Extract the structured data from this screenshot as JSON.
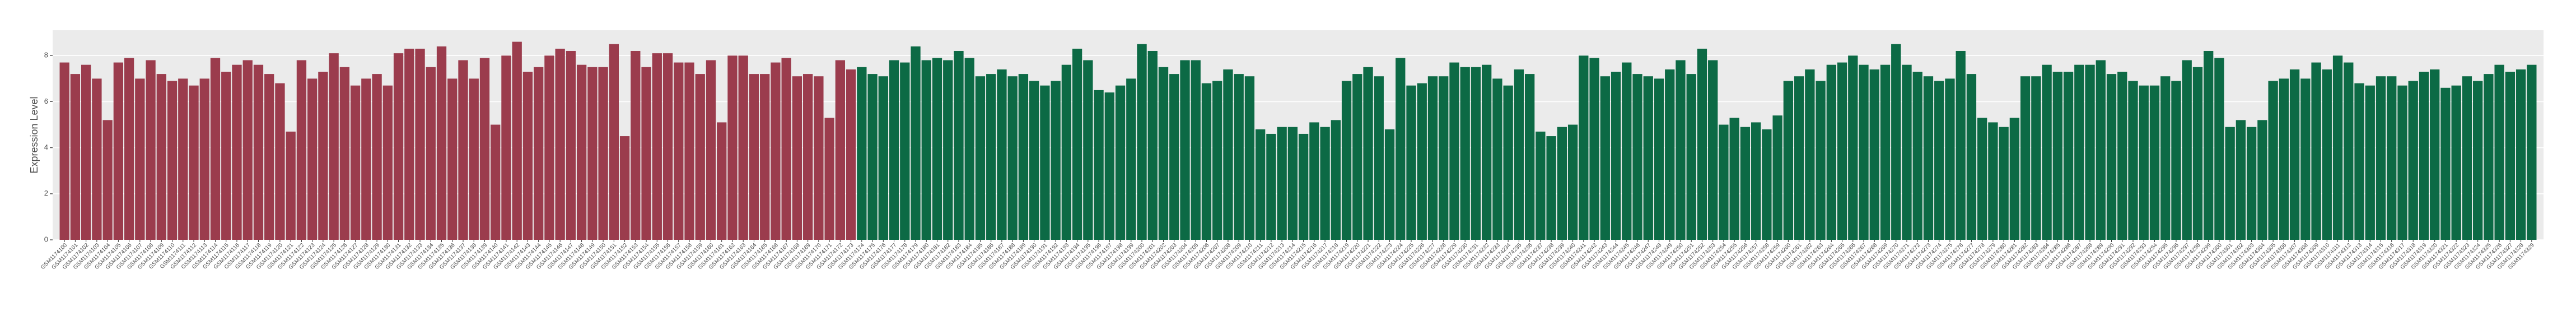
{
  "chart_data": {
    "type": "bar",
    "y_label": "Expression Level",
    "categories": [
      "GSM1174100",
      "GSM1174101",
      "GSM1174102",
      "GSM1174103",
      "GSM1174104",
      "GSM1174105",
      "GSM1174106",
      "GSM1174107",
      "GSM1174108",
      "GSM1174109",
      "GSM1174110",
      "GSM1174111",
      "GSM1174112",
      "GSM1174113",
      "GSM1174114",
      "GSM1174115",
      "GSM1174116",
      "GSM1174117",
      "GSM1174118",
      "GSM1174119",
      "GSM1174120",
      "GSM1174121",
      "GSM1174122",
      "GSM1174123",
      "GSM1174124",
      "GSM1174125",
      "GSM1174126",
      "GSM1174127",
      "GSM1174128",
      "GSM1174129",
      "GSM1174130",
      "GSM1174131",
      "GSM1174132",
      "GSM1174133",
      "GSM1174134",
      "GSM1174135",
      "GSM1174136",
      "GSM1174137",
      "GSM1174138",
      "GSM1174139",
      "GSM1174140",
      "GSM1174141",
      "GSM1174142",
      "GSM1174143",
      "GSM1174144",
      "GSM1174145",
      "GSM1174146",
      "GSM1174147",
      "GSM1174148",
      "GSM1174149",
      "GSM1174150",
      "GSM1174151",
      "GSM1174152",
      "GSM1174153",
      "GSM1174154",
      "GSM1174155",
      "GSM1174156",
      "GSM1174157",
      "GSM1174158",
      "GSM1174159",
      "GSM1174160",
      "GSM1174161",
      "GSM1174162",
      "GSM1174163",
      "GSM1174164",
      "GSM1174165",
      "GSM1174166",
      "GSM1174167",
      "GSM1174168",
      "GSM1174169",
      "GSM1174170",
      "GSM1174171",
      "GSM1174172",
      "GSM1174173",
      "GSM1174174",
      "GSM1174175",
      "GSM1174176",
      "GSM1174177",
      "GSM1174178",
      "GSM1174179",
      "GSM1174180",
      "GSM1174181",
      "GSM1174182",
      "GSM1174183",
      "GSM1174184",
      "GSM1174185",
      "GSM1174186",
      "GSM1174187",
      "GSM1174188",
      "GSM1174189",
      "GSM1174190",
      "GSM1174191",
      "GSM1174192",
      "GSM1174193",
      "GSM1174194",
      "GSM1174195",
      "GSM1174196",
      "GSM1174197",
      "GSM1174198",
      "GSM1174199",
      "GSM1174200",
      "GSM1174201",
      "GSM1174202",
      "GSM1174203",
      "GSM1174204",
      "GSM1174205",
      "GSM1174206",
      "GSM1174207",
      "GSM1174208",
      "GSM1174209",
      "GSM1174210",
      "GSM1174211",
      "GSM1174212",
      "GSM1174213",
      "GSM1174214",
      "GSM1174215",
      "GSM1174216",
      "GSM1174217",
      "GSM1174218",
      "GSM1174219",
      "GSM1174220",
      "GSM1174221",
      "GSM1174222",
      "GSM1174223",
      "GSM1174224",
      "GSM1174225",
      "GSM1174226",
      "GSM1174227",
      "GSM1174228",
      "GSM1174229",
      "GSM1174230",
      "GSM1174231",
      "GSM1174232",
      "GSM1174233",
      "GSM1174234",
      "GSM1174235",
      "GSM1174236",
      "GSM1174237",
      "GSM1174238",
      "GSM1174239",
      "GSM1174240",
      "GSM1174241",
      "GSM1174242",
      "GSM1174243",
      "GSM1174244",
      "GSM1174245",
      "GSM1174246",
      "GSM1174247",
      "GSM1174248",
      "GSM1174249",
      "GSM1174250",
      "GSM1174251",
      "GSM1174252",
      "GSM1174253",
      "GSM1174254",
      "GSM1174255",
      "GSM1174256",
      "GSM1174257",
      "GSM1174258",
      "GSM1174259",
      "GSM1174260",
      "GSM1174261",
      "GSM1174262",
      "GSM1174263",
      "GSM1174264",
      "GSM1174265",
      "GSM1174266",
      "GSM1174267",
      "GSM1174268",
      "GSM1174269",
      "GSM1174270",
      "GSM1174271",
      "GSM1174272",
      "GSM1174273",
      "GSM1174274",
      "GSM1174275",
      "GSM1174276",
      "GSM1174277",
      "GSM1174278",
      "GSM1174279",
      "GSM1174280",
      "GSM1174281",
      "GSM1174282",
      "GSM1174283",
      "GSM1174284",
      "GSM1174285",
      "GSM1174286",
      "GSM1174287",
      "GSM1174288",
      "GSM1174289",
      "GSM1174290",
      "GSM1174291",
      "GSM1174292",
      "GSM1174293",
      "GSM1174294",
      "GSM1174295",
      "GSM1174296",
      "GSM1174297",
      "GSM1174298",
      "GSM1174299",
      "GSM1174300",
      "GSM1174301",
      "GSM1174302",
      "GSM1174303",
      "GSM1174304",
      "GSM1174305",
      "GSM1174306",
      "GSM1174307",
      "GSM1174308",
      "GSM1174309",
      "GSM1174310",
      "GSM1174311",
      "GSM1174312",
      "GSM1174313",
      "GSM1174314",
      "GSM1174315",
      "GSM1174316",
      "GSM1174317",
      "GSM1174318",
      "GSM1174319",
      "GSM1174320",
      "GSM1174321",
      "GSM1174322",
      "GSM1174323",
      "GSM1174324",
      "GSM1174325",
      "GSM1174326",
      "GSM1174327",
      "GSM1174328",
      "GSM1174329"
    ],
    "values": [
      7.7,
      7.2,
      7.6,
      7.0,
      5.2,
      7.7,
      7.9,
      7.0,
      7.8,
      7.2,
      6.9,
      7.0,
      6.7,
      7.0,
      7.9,
      7.3,
      7.6,
      7.8,
      7.6,
      7.2,
      6.8,
      4.7,
      7.8,
      7.0,
      7.3,
      8.1,
      7.5,
      6.7,
      7.0,
      7.2,
      6.7,
      8.1,
      8.3,
      8.3,
      7.5,
      8.4,
      7.0,
      7.8,
      7.0,
      7.9,
      5.0,
      8.0,
      8.6,
      7.3,
      7.5,
      8.0,
      8.3,
      8.2,
      7.6,
      7.5,
      7.5,
      8.5,
      4.5,
      8.2,
      7.5,
      8.1,
      8.1,
      7.7,
      7.7,
      7.2,
      7.8,
      5.1,
      8.0,
      8.0,
      7.2,
      7.2,
      7.7,
      7.9,
      7.1,
      7.2,
      7.1,
      5.3,
      7.8,
      7.4,
      7.5,
      7.2,
      7.1,
      7.8,
      7.7,
      8.4,
      7.8,
      7.9,
      7.8,
      8.2,
      7.9,
      7.1,
      7.2,
      7.4,
      7.1,
      7.2,
      6.9,
      6.7,
      6.9,
      7.6,
      8.3,
      7.8,
      6.5,
      6.4,
      6.7,
      7.0,
      8.5,
      8.2,
      7.5,
      7.2,
      7.8,
      7.8,
      6.8,
      6.9,
      7.4,
      7.2,
      7.1,
      4.8,
      4.6,
      4.9,
      4.9,
      4.6,
      5.1,
      4.9,
      5.2,
      6.9,
      7.2,
      7.5,
      7.1,
      4.8,
      7.9,
      6.7,
      6.8,
      7.1,
      7.1,
      7.7,
      7.5,
      7.5,
      7.6,
      7.0,
      6.7,
      7.4,
      7.2,
      4.7,
      4.5,
      4.9,
      5.0,
      8.0,
      7.9,
      7.1,
      7.3,
      7.7,
      7.2,
      7.1,
      7.0,
      7.4,
      7.8,
      7.2,
      8.3,
      7.8,
      5.0,
      5.3,
      4.9,
      5.1,
      4.8,
      5.4,
      6.9,
      7.1,
      7.4,
      6.9,
      7.6,
      7.7,
      8.0,
      7.6,
      7.4,
      7.6,
      8.5,
      7.6,
      7.3,
      7.1,
      6.9,
      7.0,
      8.2,
      7.2,
      5.3,
      5.1,
      4.9,
      5.3,
      7.1,
      7.1,
      7.6,
      7.3,
      7.3,
      7.6,
      7.6,
      7.8,
      7.2,
      7.3,
      6.9,
      6.7,
      6.7,
      7.1,
      6.9,
      7.8,
      7.5,
      8.2,
      7.9,
      4.9,
      5.2,
      4.9,
      5.2,
      6.9,
      7.0,
      7.4,
      7.0,
      7.7,
      7.4,
      8.0,
      7.7,
      6.8,
      6.7,
      7.1,
      7.1,
      6.7,
      6.9,
      7.3,
      7.4,
      6.6,
      6.7,
      7.1,
      6.9,
      7.2,
      7.6,
      7.3,
      7.4,
      7.6
    ],
    "colors": [
      "#9b3c4d",
      "#9b3c4d",
      "#9b3c4d",
      "#9b3c4d",
      "#9b3c4d",
      "#9b3c4d",
      "#9b3c4d",
      "#9b3c4d",
      "#9b3c4d",
      "#9b3c4d",
      "#9b3c4d",
      "#9b3c4d",
      "#9b3c4d",
      "#9b3c4d",
      "#9b3c4d",
      "#9b3c4d",
      "#9b3c4d",
      "#9b3c4d",
      "#9b3c4d",
      "#9b3c4d",
      "#9b3c4d",
      "#9b3c4d",
      "#9b3c4d",
      "#9b3c4d",
      "#9b3c4d",
      "#9b3c4d",
      "#9b3c4d",
      "#9b3c4d",
      "#9b3c4d",
      "#9b3c4d",
      "#9b3c4d",
      "#9b3c4d",
      "#9b3c4d",
      "#9b3c4d",
      "#9b3c4d",
      "#9b3c4d",
      "#9b3c4d",
      "#9b3c4d",
      "#9b3c4d",
      "#9b3c4d",
      "#9b3c4d",
      "#9b3c4d",
      "#9b3c4d",
      "#9b3c4d",
      "#9b3c4d",
      "#9b3c4d",
      "#9b3c4d",
      "#9b3c4d",
      "#9b3c4d",
      "#9b3c4d",
      "#9b3c4d",
      "#9b3c4d",
      "#9b3c4d",
      "#9b3c4d",
      "#9b3c4d",
      "#9b3c4d",
      "#9b3c4d",
      "#9b3c4d",
      "#9b3c4d",
      "#9b3c4d",
      "#9b3c4d",
      "#9b3c4d",
      "#9b3c4d",
      "#9b3c4d",
      "#9b3c4d",
      "#9b3c4d",
      "#9b3c4d",
      "#9b3c4d",
      "#9b3c4d",
      "#9b3c4d",
      "#9b3c4d",
      "#9b3c4d",
      "#9b3c4d",
      "#9b3c4d",
      "#0c6a45",
      "#0c6a45",
      "#0c6a45",
      "#0c6a45",
      "#0c6a45",
      "#0c6a45",
      "#0c6a45",
      "#0c6a45",
      "#0c6a45",
      "#0c6a45",
      "#0c6a45",
      "#0c6a45",
      "#0c6a45",
      "#0c6a45",
      "#0c6a45",
      "#0c6a45",
      "#0c6a45",
      "#0c6a45",
      "#0c6a45",
      "#0c6a45",
      "#0c6a45",
      "#0c6a45",
      "#0c6a45",
      "#0c6a45",
      "#0c6a45",
      "#0c6a45",
      "#0c6a45",
      "#0c6a45",
      "#0c6a45",
      "#0c6a45",
      "#0c6a45",
      "#0c6a45",
      "#0c6a45",
      "#0c6a45",
      "#0c6a45",
      "#0c6a45",
      "#0c6a45",
      "#0c6a45",
      "#0c6a45",
      "#0c6a45",
      "#0c6a45",
      "#0c6a45",
      "#0c6a45",
      "#0c6a45",
      "#0c6a45",
      "#0c6a45",
      "#0c6a45",
      "#0c6a45",
      "#0c6a45",
      "#0c6a45",
      "#0c6a45",
      "#0c6a45",
      "#0c6a45",
      "#0c6a45",
      "#0c6a45",
      "#0c6a45",
      "#0c6a45",
      "#0c6a45",
      "#0c6a45",
      "#0c6a45",
      "#0c6a45",
      "#0c6a45",
      "#0c6a45",
      "#0c6a45",
      "#0c6a45",
      "#0c6a45",
      "#0c6a45",
      "#0c6a45",
      "#0c6a45",
      "#0c6a45",
      "#0c6a45",
      "#0c6a45",
      "#0c6a45",
      "#0c6a45",
      "#0c6a45",
      "#0c6a45",
      "#0c6a45",
      "#0c6a45",
      "#0c6a45",
      "#0c6a45",
      "#0c6a45",
      "#0c6a45",
      "#0c6a45",
      "#0c6a45",
      "#0c6a45",
      "#0c6a45",
      "#0c6a45",
      "#0c6a45",
      "#0c6a45",
      "#0c6a45",
      "#0c6a45",
      "#0c6a45",
      "#0c6a45",
      "#0c6a45",
      "#0c6a45",
      "#0c6a45",
      "#0c6a45",
      "#0c6a45",
      "#0c6a45",
      "#0c6a45",
      "#0c6a45",
      "#0c6a45",
      "#0c6a45",
      "#0c6a45",
      "#0c6a45",
      "#0c6a45",
      "#0c6a45",
      "#0c6a45",
      "#0c6a45",
      "#0c6a45",
      "#0c6a45",
      "#0c6a45",
      "#0c6a45",
      "#0c6a45",
      "#0c6a45",
      "#0c6a45",
      "#0c6a45",
      "#0c6a45",
      "#0c6a45",
      "#0c6a45",
      "#0c6a45",
      "#0c6a45",
      "#0c6a45",
      "#0c6a45",
      "#0c6a45",
      "#0c6a45",
      "#0c6a45",
      "#0c6a45",
      "#0c6a45",
      "#0c6a45",
      "#0c6a45",
      "#0c6a45",
      "#0c6a45",
      "#0c6a45",
      "#0c6a45",
      "#0c6a45",
      "#0c6a45",
      "#0c6a45",
      "#0c6a45",
      "#0c6a45",
      "#0c6a45",
      "#0c6a45",
      "#0c6a45",
      "#0c6a45",
      "#0c6a45",
      "#0c6a45",
      "#0c6a45",
      "#0c6a45",
      "#0c6a45",
      "#0c6a45",
      "#0c6a45",
      "#0c6a45",
      "#0c6a45",
      "#0c6a45",
      "#0c6a45",
      "#0c6a45"
    ],
    "ylim": [
      0,
      9.1
    ],
    "yticks": [
      0,
      2,
      4,
      6,
      8
    ],
    "grid": true
  }
}
